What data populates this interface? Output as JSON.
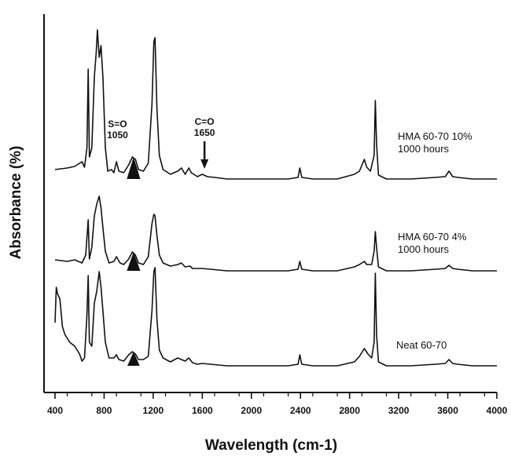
{
  "chart_data": {
    "type": "line",
    "xlabel": "Wavelength (cm-1)",
    "ylabel": "Absorbance (%)",
    "xlim": [
      330,
      4000
    ],
    "x_ticks": [
      400,
      800,
      1200,
      1600,
      2000,
      2400,
      2800,
      3200,
      3600,
      4000
    ],
    "x_tick_labels": [
      "400",
      "800",
      "1200",
      "1600",
      "2000",
      "2400",
      "2800",
      "3200",
      "3600",
      "4000"
    ],
    "grid": false,
    "legend": "none (labels placed beside each trace)",
    "series": [
      {
        "name": "HMA 60-70 10% 1000 hours",
        "label_lines": [
          "HMA 60-70 10%",
          "1000 hours"
        ],
        "color": "#111111",
        "baseline": 228,
        "points": [
          [
            400,
            12
          ],
          [
            500,
            14
          ],
          [
            560,
            16
          ],
          [
            620,
            22
          ],
          [
            640,
            15
          ],
          [
            660,
            40
          ],
          [
            670,
            140
          ],
          [
            680,
            28
          ],
          [
            700,
            40
          ],
          [
            720,
            130
          ],
          [
            735,
            160
          ],
          [
            745,
            190
          ],
          [
            760,
            155
          ],
          [
            775,
            170
          ],
          [
            790,
            130
          ],
          [
            810,
            40
          ],
          [
            830,
            10
          ],
          [
            860,
            12
          ],
          [
            880,
            8
          ],
          [
            900,
            22
          ],
          [
            920,
            10
          ],
          [
            960,
            8
          ],
          [
            1000,
            18
          ],
          [
            1030,
            28
          ],
          [
            1055,
            25
          ],
          [
            1080,
            12
          ],
          [
            1120,
            10
          ],
          [
            1160,
            20
          ],
          [
            1190,
            95
          ],
          [
            1205,
            175
          ],
          [
            1215,
            180
          ],
          [
            1230,
            90
          ],
          [
            1250,
            30
          ],
          [
            1280,
            12
          ],
          [
            1340,
            6
          ],
          [
            1400,
            10
          ],
          [
            1430,
            14
          ],
          [
            1460,
            6
          ],
          [
            1490,
            14
          ],
          [
            1510,
            8
          ],
          [
            1560,
            3
          ],
          [
            1600,
            6
          ],
          [
            1640,
            3
          ],
          [
            1700,
            2
          ],
          [
            1800,
            0
          ],
          [
            2000,
            0
          ],
          [
            2300,
            0
          ],
          [
            2380,
            2
          ],
          [
            2395,
            14
          ],
          [
            2410,
            2
          ],
          [
            2500,
            0
          ],
          [
            2700,
            0
          ],
          [
            2840,
            6
          ],
          [
            2880,
            10
          ],
          [
            2920,
            25
          ],
          [
            2940,
            15
          ],
          [
            2970,
            10
          ],
          [
            3000,
            30
          ],
          [
            3010,
            100
          ],
          [
            3020,
            45
          ],
          [
            3035,
            5
          ],
          [
            3100,
            0
          ],
          [
            3300,
            0
          ],
          [
            3500,
            2
          ],
          [
            3580,
            3
          ],
          [
            3610,
            10
          ],
          [
            3640,
            3
          ],
          [
            3680,
            2
          ],
          [
            3800,
            0
          ],
          [
            4000,
            0
          ]
        ]
      },
      {
        "name": "HMA 60-70 4% 1000 hours",
        "label_lines": [
          "HMA 60-70 4%",
          "1000 hours"
        ],
        "color": "#111111",
        "baseline": 345,
        "points": [
          [
            400,
            14
          ],
          [
            500,
            12
          ],
          [
            560,
            14
          ],
          [
            620,
            10
          ],
          [
            650,
            20
          ],
          [
            670,
            65
          ],
          [
            680,
            15
          ],
          [
            700,
            30
          ],
          [
            720,
            70
          ],
          [
            740,
            85
          ],
          [
            760,
            95
          ],
          [
            775,
            80
          ],
          [
            790,
            55
          ],
          [
            810,
            25
          ],
          [
            840,
            10
          ],
          [
            880,
            12
          ],
          [
            900,
            18
          ],
          [
            930,
            10
          ],
          [
            960,
            8
          ],
          [
            1000,
            15
          ],
          [
            1030,
            24
          ],
          [
            1055,
            20
          ],
          [
            1080,
            10
          ],
          [
            1120,
            8
          ],
          [
            1160,
            18
          ],
          [
            1190,
            60
          ],
          [
            1205,
            72
          ],
          [
            1215,
            70
          ],
          [
            1230,
            45
          ],
          [
            1250,
            20
          ],
          [
            1280,
            10
          ],
          [
            1340,
            6
          ],
          [
            1400,
            8
          ],
          [
            1430,
            10
          ],
          [
            1460,
            5
          ],
          [
            1500,
            6
          ],
          [
            1520,
            3
          ],
          [
            1600,
            3
          ],
          [
            1800,
            0
          ],
          [
            2000,
            0
          ],
          [
            2300,
            0
          ],
          [
            2380,
            2
          ],
          [
            2395,
            12
          ],
          [
            2410,
            2
          ],
          [
            2500,
            0
          ],
          [
            2700,
            0
          ],
          [
            2840,
            5
          ],
          [
            2880,
            8
          ],
          [
            2920,
            12
          ],
          [
            2940,
            8
          ],
          [
            2980,
            8
          ],
          [
            3000,
            25
          ],
          [
            3010,
            50
          ],
          [
            3020,
            30
          ],
          [
            3035,
            5
          ],
          [
            3100,
            0
          ],
          [
            3300,
            0
          ],
          [
            3500,
            2
          ],
          [
            3580,
            3
          ],
          [
            3610,
            7
          ],
          [
            3640,
            3
          ],
          [
            3680,
            2
          ],
          [
            3800,
            0
          ],
          [
            4000,
            0
          ]
        ]
      },
      {
        "name": "Neat 60-70",
        "label_lines": [
          "Neat 60-70"
        ],
        "color": "#111111",
        "baseline": 466,
        "points": [
          [
            400,
            55
          ],
          [
            410,
            100
          ],
          [
            420,
            92
          ],
          [
            440,
            85
          ],
          [
            460,
            50
          ],
          [
            480,
            40
          ],
          [
            520,
            30
          ],
          [
            560,
            25
          ],
          [
            600,
            15
          ],
          [
            620,
            6
          ],
          [
            640,
            10
          ],
          [
            660,
            65
          ],
          [
            670,
            115
          ],
          [
            680,
            30
          ],
          [
            700,
            25
          ],
          [
            720,
            80
          ],
          [
            740,
            95
          ],
          [
            760,
            120
          ],
          [
            775,
            100
          ],
          [
            790,
            70
          ],
          [
            810,
            30
          ],
          [
            840,
            10
          ],
          [
            880,
            10
          ],
          [
            900,
            14
          ],
          [
            920,
            8
          ],
          [
            960,
            6
          ],
          [
            1000,
            14
          ],
          [
            1030,
            18
          ],
          [
            1055,
            15
          ],
          [
            1080,
            8
          ],
          [
            1120,
            8
          ],
          [
            1160,
            12
          ],
          [
            1190,
            70
          ],
          [
            1205,
            120
          ],
          [
            1215,
            125
          ],
          [
            1230,
            60
          ],
          [
            1250,
            20
          ],
          [
            1280,
            10
          ],
          [
            1340,
            5
          ],
          [
            1400,
            10
          ],
          [
            1430,
            8
          ],
          [
            1460,
            6
          ],
          [
            1490,
            10
          ],
          [
            1520,
            4
          ],
          [
            1560,
            2
          ],
          [
            1600,
            3
          ],
          [
            1800,
            0
          ],
          [
            2000,
            0
          ],
          [
            2300,
            0
          ],
          [
            2380,
            2
          ],
          [
            2395,
            14
          ],
          [
            2410,
            2
          ],
          [
            2500,
            0
          ],
          [
            2700,
            0
          ],
          [
            2840,
            5
          ],
          [
            2880,
            12
          ],
          [
            2920,
            22
          ],
          [
            2950,
            15
          ],
          [
            2980,
            10
          ],
          [
            3000,
            30
          ],
          [
            3010,
            118
          ],
          [
            3020,
            40
          ],
          [
            3035,
            5
          ],
          [
            3100,
            0
          ],
          [
            3300,
            0
          ],
          [
            3500,
            2
          ],
          [
            3580,
            3
          ],
          [
            3610,
            8
          ],
          [
            3640,
            3
          ],
          [
            3680,
            2
          ],
          [
            3800,
            0
          ],
          [
            4000,
            0
          ]
        ]
      }
    ],
    "filled_peaks": [
      {
        "series": 0,
        "center": 1040,
        "from": 985,
        "to": 1095,
        "height": 28
      },
      {
        "series": 1,
        "center": 1040,
        "from": 985,
        "to": 1095,
        "height": 24
      },
      {
        "series": 2,
        "center": 1040,
        "from": 990,
        "to": 1090,
        "height": 18
      }
    ],
    "annotations": [
      {
        "lines": [
          "S=O",
          "1050"
        ],
        "x": 1050
      },
      {
        "lines": [
          "C=O",
          "1650"
        ],
        "x": 1650,
        "arrow": true
      }
    ]
  }
}
